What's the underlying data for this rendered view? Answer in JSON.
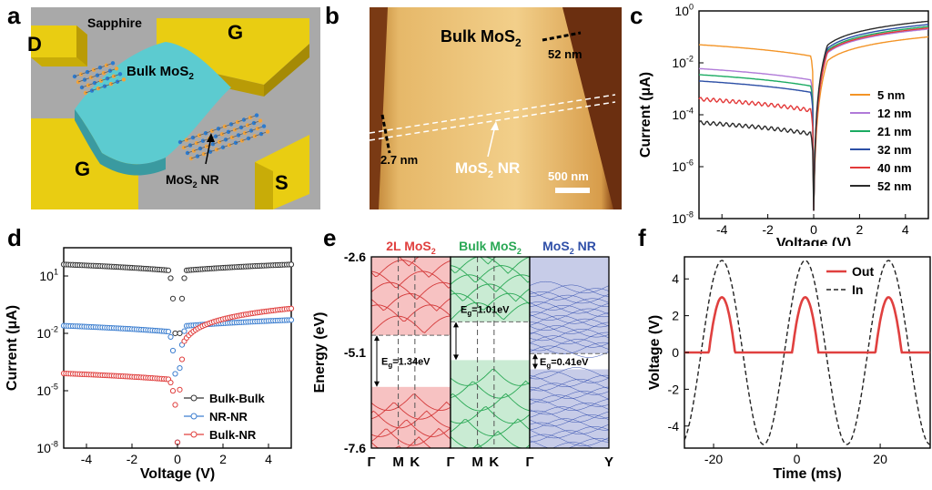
{
  "letters": {
    "a": "a",
    "b": "b",
    "c": "c",
    "d": "d",
    "e": "e",
    "f": "f"
  },
  "panel_a": {
    "sapphire": "Sapphire",
    "bulk": "Bulk MoS",
    "bulk_sub": "2",
    "nr": "MoS",
    "nr_sub": "2",
    "nr_tail": " NR",
    "electrodes": {
      "D": "D",
      "G_top": "G",
      "G_bottom": "G",
      "S": "S"
    },
    "colors": {
      "gold": "#e2c70c",
      "flake": "#59c9cd",
      "substrate": "#a8a8a8"
    }
  },
  "panel_b": {
    "bulk": "Bulk MoS",
    "bulk_sub": "2",
    "thick_bulk": "52 nm",
    "thick_nr": "2.7 nm",
    "nr": "MoS",
    "nr_sub": "2",
    "nr_tail": " NR",
    "scale_bar": "500 nm",
    "colors": {
      "flake": "#d8a44c",
      "bg": "#7a3a12"
    }
  },
  "chart_data": [
    {
      "id": "c",
      "type": "line",
      "xlabel": "Voltage (V)",
      "ylabel": "Current (μA)",
      "yscale": "log",
      "xlim": [
        -5,
        5
      ],
      "ylim": [
        1e-08,
        1
      ],
      "xticks": [
        -4,
        -2,
        0,
        2,
        4
      ],
      "ytick_labels": [
        {
          "mant": "10",
          "exp": "0"
        },
        {
          "mant": "10",
          "exp": "-2"
        },
        {
          "mant": "10",
          "exp": "-4"
        },
        {
          "mant": "10",
          "exp": "-6"
        },
        {
          "mant": "10",
          "exp": "-8"
        }
      ],
      "legend_position": "bottom-right",
      "series": [
        {
          "name": "5 nm",
          "color": "#f39426",
          "left": 0.05,
          "right": 0.1,
          "baseline": 0.0002
        },
        {
          "name": "12 nm",
          "color": "#b07ad8",
          "left": 0.006,
          "right": 0.2,
          "baseline": 0.0002
        },
        {
          "name": "21 nm",
          "color": "#1bab62",
          "left": 0.0035,
          "right": 0.25,
          "baseline": 0.0002
        },
        {
          "name": "32 nm",
          "color": "#2c4fa6",
          "left": 0.002,
          "right": 0.3,
          "baseline": 0.0002
        },
        {
          "name": "40 nm",
          "color": "#e33a3a",
          "left": 0.0004,
          "right": 0.22,
          "baseline": 0.00015
        },
        {
          "name": "52 nm",
          "color": "#2b2b2b",
          "left": 5e-05,
          "right": 0.4,
          "baseline": 8e-06
        }
      ]
    },
    {
      "id": "d",
      "type": "scatter",
      "xlabel": "Voltage (V)",
      "ylabel": "Current (μA)",
      "yscale": "log",
      "xlim": [
        -5,
        5
      ],
      "ylim": [
        1e-08,
        300
      ],
      "xticks": [
        -4,
        -2,
        0,
        2,
        4
      ],
      "ytick_labels": [
        {
          "mant": "10",
          "exp": "1"
        },
        {
          "mant": "10",
          "exp": "-2"
        },
        {
          "mant": "10",
          "exp": "-5"
        },
        {
          "mant": "10",
          "exp": "-8"
        }
      ],
      "legend_position": "bottom-right",
      "series": [
        {
          "name": "Bulk-Bulk",
          "color": "#333333",
          "left": 40,
          "right": 40,
          "steep": 3
        },
        {
          "name": "NR-NR",
          "color": "#3d7fd0",
          "left": 0.025,
          "right": 0.05,
          "steep": 2
        },
        {
          "name": "Bulk-NR",
          "color": "#e0403f",
          "left": 8e-05,
          "right": 0.2,
          "steep": 1.2
        }
      ]
    },
    {
      "id": "e",
      "type": "line",
      "ylabel": "Energy (eV)",
      "ylim": [
        -7.6,
        -2.6
      ],
      "ytick_labels": [
        "-2.6",
        "-5.1",
        "-7.6"
      ],
      "subpanels": [
        {
          "title": "2L MoS",
          "title_sub": "2",
          "title_color": "#e0403f",
          "bands_color": "#d43a3a",
          "fill_color": "#f7c2c2",
          "gap_top": -4.65,
          "gap_bottom": -6.0,
          "gap_label": "E",
          "gap_sub": "g",
          "gap_value": "=1.34eV",
          "xticks": [
            "Γ",
            "M",
            "K",
            "Γ"
          ]
        },
        {
          "title": "Bulk MoS",
          "title_sub": "2",
          "title_color": "#2aa855",
          "bands_color": "#2aa855",
          "fill_color": "#c9ebd3",
          "gap_top": -4.3,
          "gap_bottom": -5.3,
          "gap_label": "E",
          "gap_sub": "g",
          "gap_value": "=1.01eV",
          "xticks": [
            "M",
            "K",
            "Γ"
          ]
        },
        {
          "title": "MoS",
          "title_sub": "2",
          "title_tail": " NR",
          "title_color": "#2f4fa8",
          "bands_color": "#3550b0",
          "fill_color": "#c7cce8",
          "gap_top": -5.13,
          "gap_bottom": -5.54,
          "gap_label": "E",
          "gap_sub": "g",
          "gap_value": "=0.41eV",
          "xticks": [
            "Y"
          ]
        }
      ]
    },
    {
      "id": "f",
      "type": "line",
      "xlabel": "Time (ms)",
      "ylabel": "Voltage (V)",
      "xlim": [
        -27,
        32
      ],
      "ylim": [
        -5.2,
        5.2
      ],
      "xticks": [
        -20,
        0,
        20
      ],
      "yticks": [
        4,
        2,
        0,
        -2,
        -4
      ],
      "legend_position": "top-right",
      "series": [
        {
          "name": "Out",
          "color": "#e0403f",
          "style": "solid",
          "amplitude": 3,
          "rectified": true,
          "period": 20
        },
        {
          "name": "In",
          "color": "#222222",
          "style": "dashed",
          "amplitude": 5,
          "period": 20
        }
      ]
    }
  ]
}
